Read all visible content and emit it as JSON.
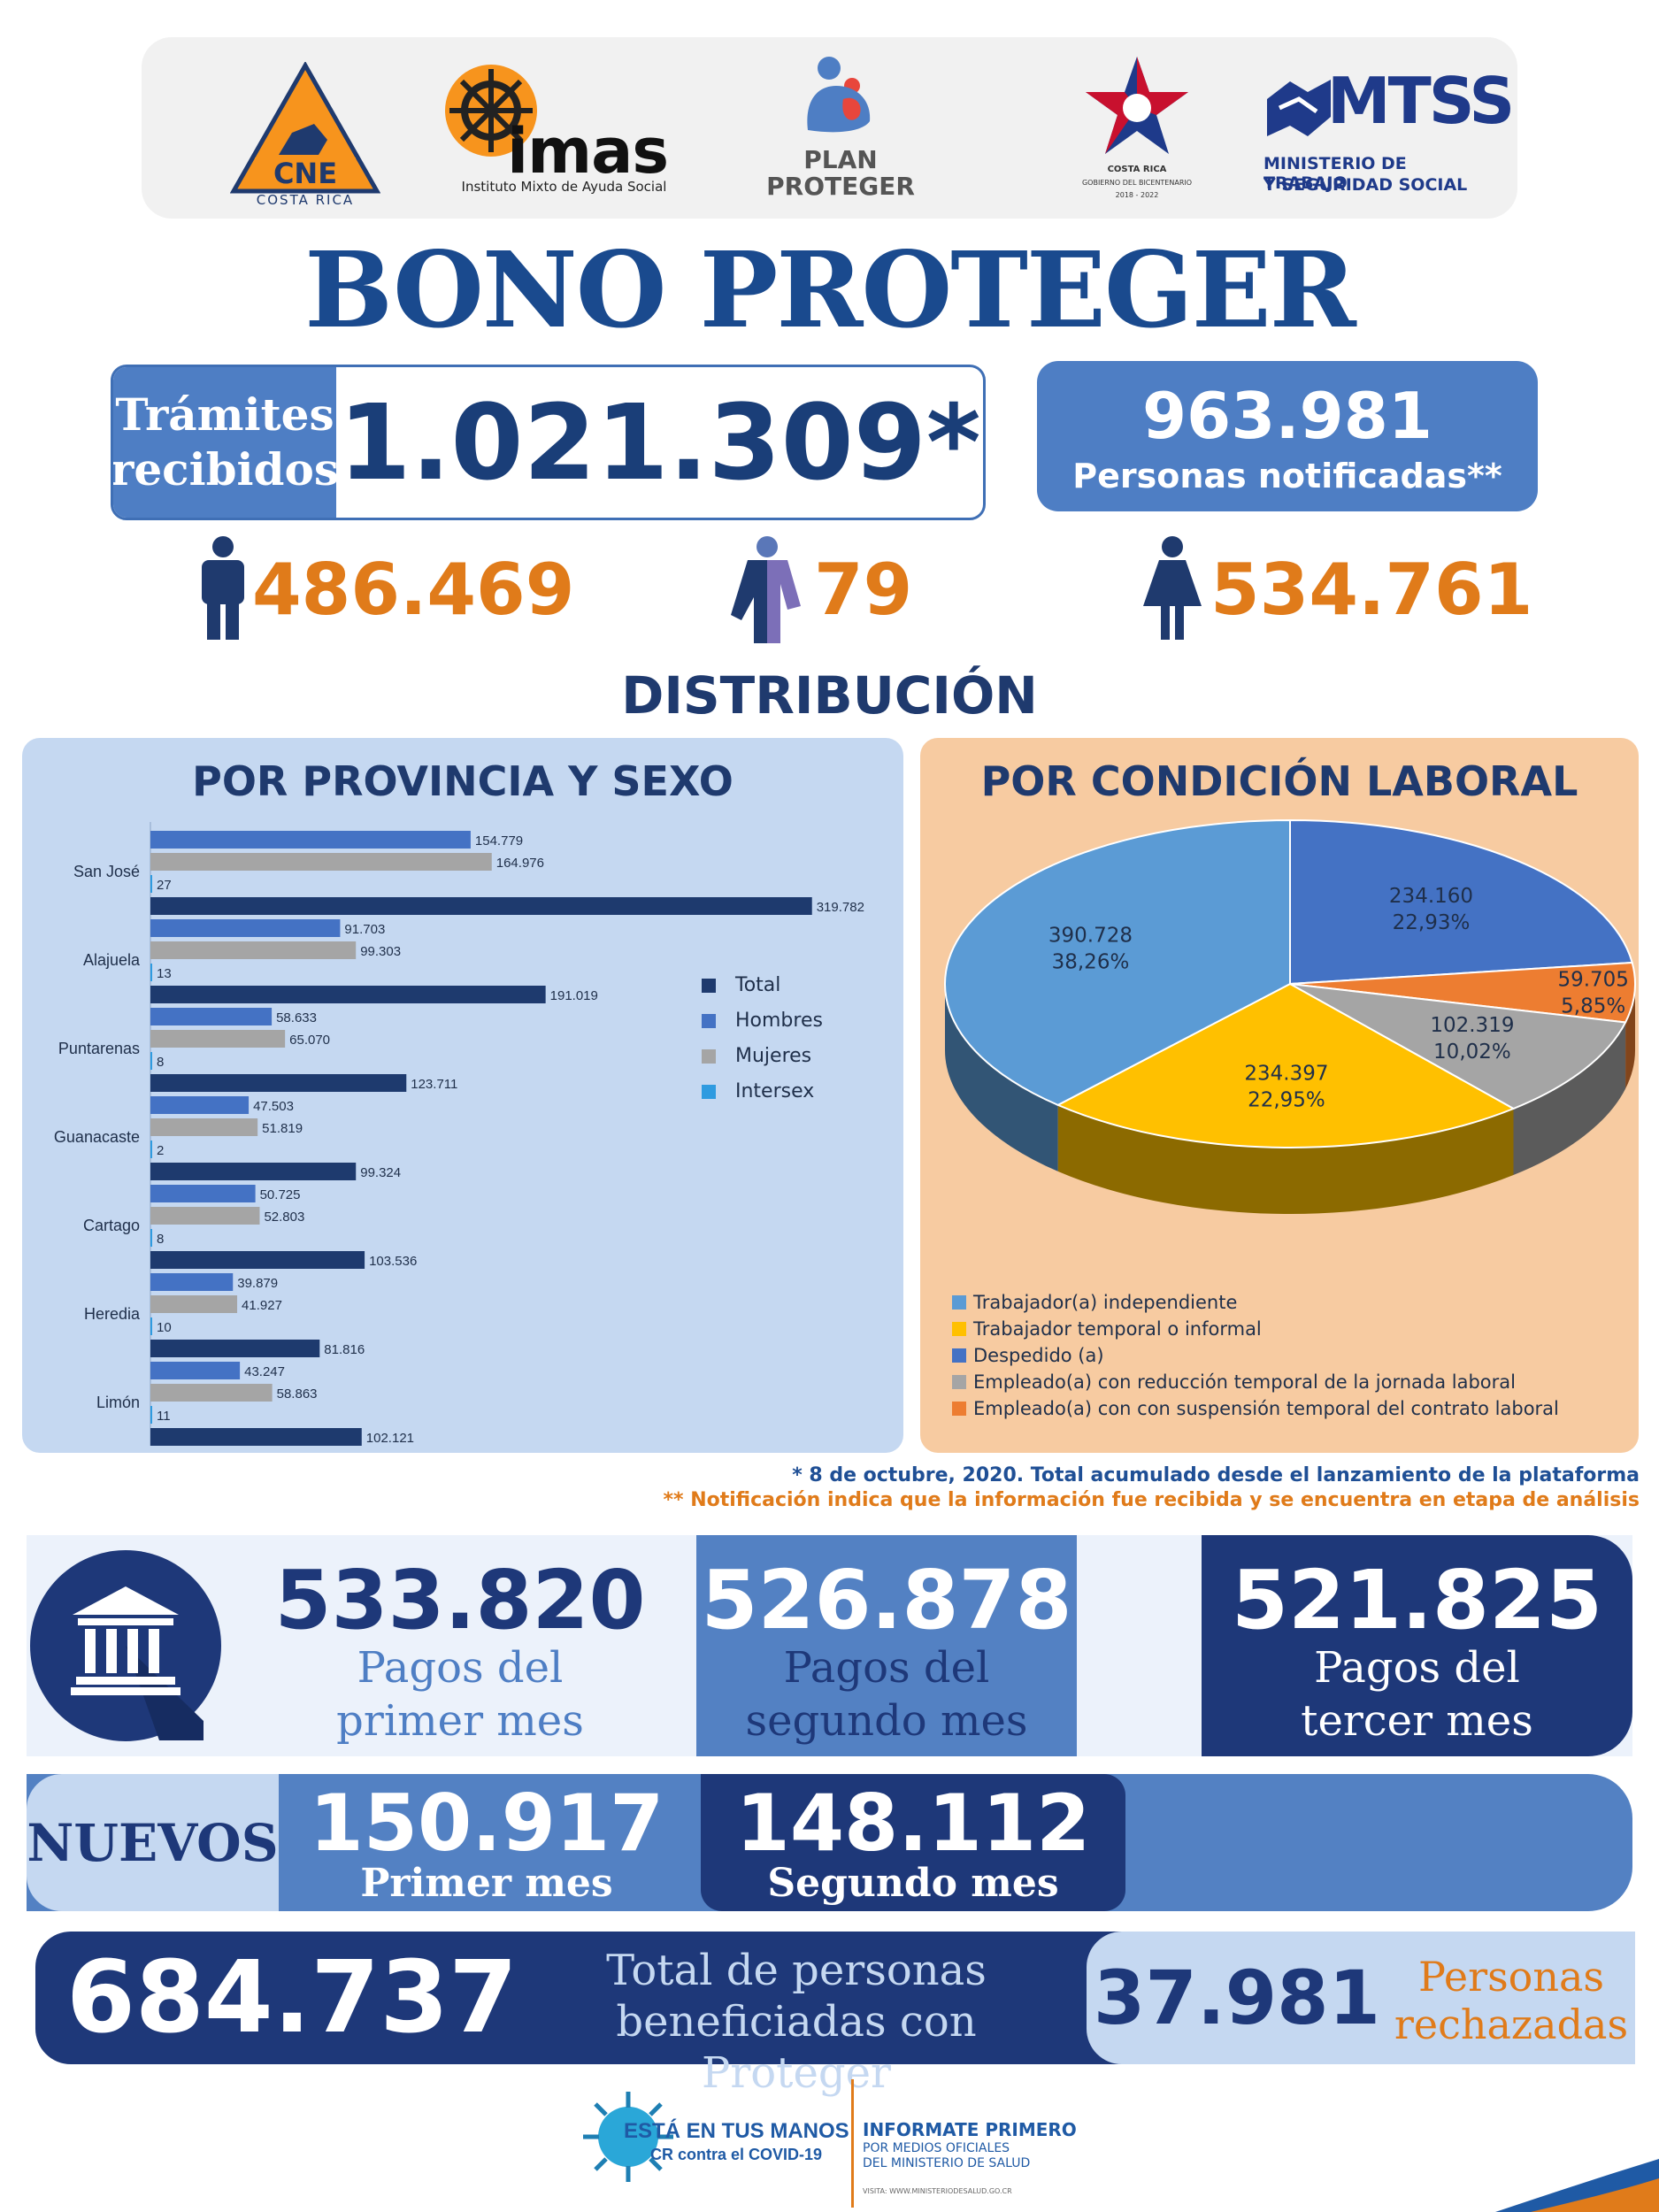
{
  "logos": {
    "cne": {
      "text": "CNE",
      "sub": "COSTA RICA"
    },
    "imas": {
      "text": "imas",
      "sub": "Instituto Mixto de Ayuda Social"
    },
    "plan": {
      "line1": "PLAN",
      "line2": "PROTEGER"
    },
    "costa_rica": {
      "line1": "COSTA RICA",
      "line2": "GOBIERNO DEL BICENTENARIO",
      "line3": "2018 - 2022"
    },
    "mtss": {
      "text": "MTSS",
      "line1": "MINISTERIO DE TRABAJO",
      "line2": "Y SEGURIDAD SOCIAL"
    }
  },
  "title": "BONO PROTEGER",
  "tramites": {
    "label_1": "Trámites",
    "label_2": "recibidos",
    "value": "1.021.309*"
  },
  "notificadas": {
    "value": "963.981",
    "label": "Personas notificadas**"
  },
  "genders": {
    "men": "486.469",
    "intersex": "79",
    "women": "534.761"
  },
  "distribution_title": "DISTRIBUCIÓN",
  "colors": {
    "total": "#1e3a6e",
    "hombres": "#4472c4",
    "mujeres": "#a5a5a5",
    "intersex": "#2f9be0",
    "orange": "#e07b1a"
  },
  "chart_data": [
    {
      "type": "bar",
      "title": "POR PROVINCIA Y SEXO",
      "orientation": "horizontal",
      "categories": [
        "San José",
        "Alajuela",
        "Puntarenas",
        "Guanacaste",
        "Cartago",
        "Heredia",
        "Limón"
      ],
      "series": [
        {
          "name": "Hombres",
          "values": [
            154779,
            91703,
            58633,
            47503,
            50725,
            39879,
            43247
          ],
          "labels": [
            "154.779",
            "91.703",
            "58.633",
            "47.503",
            "50.725",
            "39.879",
            "43.247"
          ]
        },
        {
          "name": "Mujeres",
          "values": [
            164976,
            99303,
            65070,
            51819,
            52803,
            41927,
            58863
          ],
          "labels": [
            "164.976",
            "99.303",
            "65.070",
            "51.819",
            "52.803",
            "41.927",
            "58.863"
          ]
        },
        {
          "name": "Intersex",
          "values": [
            27,
            13,
            8,
            2,
            8,
            10,
            11
          ],
          "labels": [
            "27",
            "13",
            "8",
            "2",
            "8",
            "10",
            "11"
          ]
        },
        {
          "name": "Total",
          "values": [
            319782,
            191019,
            123711,
            99324,
            103536,
            81816,
            102121
          ],
          "labels": [
            "319.782",
            "191.019",
            "123.711",
            "99.324",
            "103.536",
            "81.816",
            "102.121"
          ]
        }
      ],
      "legend": [
        "Total",
        "Hombres",
        "Mujeres",
        "Intersex"
      ],
      "legend_position": "right",
      "xlim": [
        0,
        340000
      ]
    },
    {
      "type": "pie",
      "title": "POR CONDICIÓN LABORAL",
      "slices": [
        {
          "name": "Despedido (a)",
          "value": 234160,
          "value_label": "234.160",
          "percent_label": "22,93%",
          "color": "#4472c4"
        },
        {
          "name": "Empleado(a) con con suspensión temporal del contrato laboral",
          "value": 59705,
          "value_label": "59.705",
          "percent_label": "5,85%",
          "color": "#ed7d31"
        },
        {
          "name": "Empleado(a) con reducción temporal de la jornada laboral",
          "value": 102319,
          "value_label": "102.319",
          "percent_label": "10,02%",
          "color": "#a5a5a5"
        },
        {
          "name": "Trabajador temporal o informal",
          "value": 234397,
          "value_label": "234.397",
          "percent_label": "22,95%",
          "color": "#ffc000"
        },
        {
          "name": "Trabajador(a) independiente",
          "value": 390728,
          "value_label": "390.728",
          "percent_label": "38,26%",
          "color": "#5b9bd5"
        }
      ],
      "legend": [
        "Trabajador(a) independiente",
        "Trabajador temporal o informal",
        "Despedido (a)",
        "Empleado(a) con reducción temporal de la jornada laboral",
        "Empleado(a) con con suspensión temporal del contrato laboral"
      ],
      "legend_colors": [
        "#5b9bd5",
        "#ffc000",
        "#4472c4",
        "#a5a5a5",
        "#ed7d31"
      ],
      "legend_position": "bottom"
    }
  ],
  "footnotes": {
    "one": "* 8 de octubre, 2020. Total acumulado desde el lanzamiento de la plataforma",
    "two": "** Notificación indica que la información fue recibida y se encuentra en etapa de análisis"
  },
  "payments": {
    "first": {
      "value": "533.820",
      "label_1": "Pagos del",
      "label_2": "primer mes"
    },
    "second": {
      "value": "526.878",
      "label_1": "Pagos del",
      "label_2": "segundo mes"
    },
    "third": {
      "value": "521.825",
      "label_1": "Pagos del",
      "label_2": "tercer mes"
    }
  },
  "nuevos": {
    "label": "NUEVOS",
    "first": {
      "value": "150.917",
      "label": "Primer mes"
    },
    "second": {
      "value": "148.112",
      "label": "Segundo mes"
    }
  },
  "totals": {
    "value": "684.737",
    "label_1": "Total de personas",
    "label_2": "beneficiadas con Proteger",
    "rejected_value": "37.981",
    "rejected_label_1": "Personas",
    "rejected_label_2": "rechazadas"
  },
  "footer": {
    "campaign_1": "ESTÁ EN TUS MANOS",
    "campaign_2": "CR contra el COVID-19",
    "info_1": "INFORMATE PRIMERO",
    "info_2": "POR MEDIOS OFICIALES",
    "info_3": "DEL MINISTERIO DE SALUD",
    "visit": "VISITA: WWW.MINISTERIODESALUD.GO.CR"
  }
}
